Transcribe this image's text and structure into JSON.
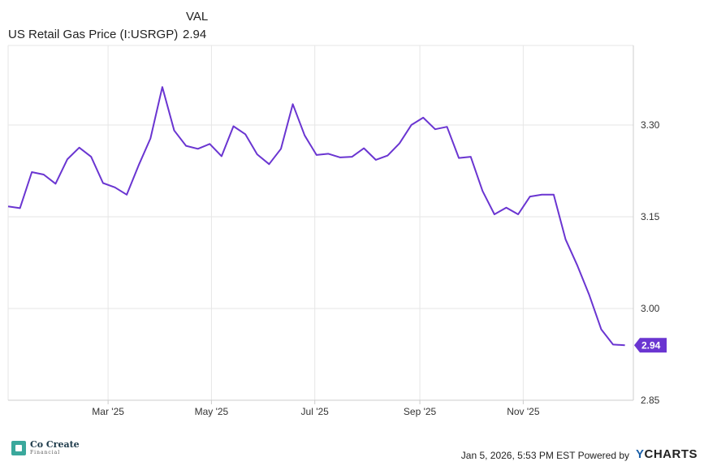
{
  "legend": {
    "header": "VAL",
    "series_name": "US Retail Gas Price (I:USRGP)",
    "series_value": "2.94"
  },
  "footer": {
    "logo_name": "Co Create",
    "logo_sub": "Financial",
    "timestamp": "Jan 5, 2026, 5:53 PM EST Powered by",
    "brand": "YCHARTS"
  },
  "colors": {
    "line": "#6a35d1",
    "grid": "#e6e6e6",
    "axis": "#cccccc"
  },
  "chart_data": {
    "type": "line",
    "title": "",
    "xlabel": "",
    "ylabel": "",
    "ylim": [
      2.85,
      3.43
    ],
    "y_ticks": [
      2.85,
      3.0,
      3.15,
      3.3
    ],
    "y_tick_labels": [
      "2.85",
      "3.00",
      "3.15",
      "3.30"
    ],
    "x_ticks": [
      "2025-03-01",
      "2025-05-01",
      "2025-07-01",
      "2025-09-01",
      "2025-11-01"
    ],
    "x_tick_labels": [
      "Mar '25",
      "May '25",
      "Jul '25",
      "Sep '25",
      "Nov '25"
    ],
    "xlim": [
      "2025-01-01",
      "2026-01-05"
    ],
    "grid": true,
    "last_value_label": "2.94",
    "series": [
      {
        "name": "US Retail Gas Price (I:USRGP)",
        "x": [
          "2025-01-01",
          "2025-01-08",
          "2025-01-15",
          "2025-01-22",
          "2025-01-29",
          "2025-02-05",
          "2025-02-12",
          "2025-02-19",
          "2025-02-26",
          "2025-03-05",
          "2025-03-12",
          "2025-03-19",
          "2025-03-26",
          "2025-04-02",
          "2025-04-09",
          "2025-04-16",
          "2025-04-23",
          "2025-04-30",
          "2025-05-07",
          "2025-05-14",
          "2025-05-21",
          "2025-05-28",
          "2025-06-04",
          "2025-06-11",
          "2025-06-18",
          "2025-06-25",
          "2025-07-02",
          "2025-07-09",
          "2025-07-16",
          "2025-07-23",
          "2025-07-30",
          "2025-08-06",
          "2025-08-13",
          "2025-08-20",
          "2025-08-27",
          "2025-09-03",
          "2025-09-10",
          "2025-09-17",
          "2025-09-24",
          "2025-10-01",
          "2025-10-08",
          "2025-10-15",
          "2025-10-22",
          "2025-10-29",
          "2025-11-05",
          "2025-11-12",
          "2025-11-19",
          "2025-11-26",
          "2025-12-03",
          "2025-12-10",
          "2025-12-17",
          "2025-12-24",
          "2025-12-31"
        ],
        "y": [
          3.167,
          3.164,
          3.223,
          3.219,
          3.204,
          3.244,
          3.263,
          3.248,
          3.205,
          3.198,
          3.186,
          3.234,
          3.278,
          3.362,
          3.291,
          3.266,
          3.261,
          3.269,
          3.249,
          3.298,
          3.285,
          3.252,
          3.236,
          3.261,
          3.334,
          3.283,
          3.251,
          3.253,
          3.247,
          3.248,
          3.262,
          3.243,
          3.25,
          3.27,
          3.3,
          3.312,
          3.293,
          3.297,
          3.246,
          3.248,
          3.192,
          3.154,
          3.165,
          3.154,
          3.183,
          3.186,
          3.186,
          3.113,
          3.07,
          3.022,
          2.966,
          2.941,
          2.94
        ]
      }
    ]
  }
}
